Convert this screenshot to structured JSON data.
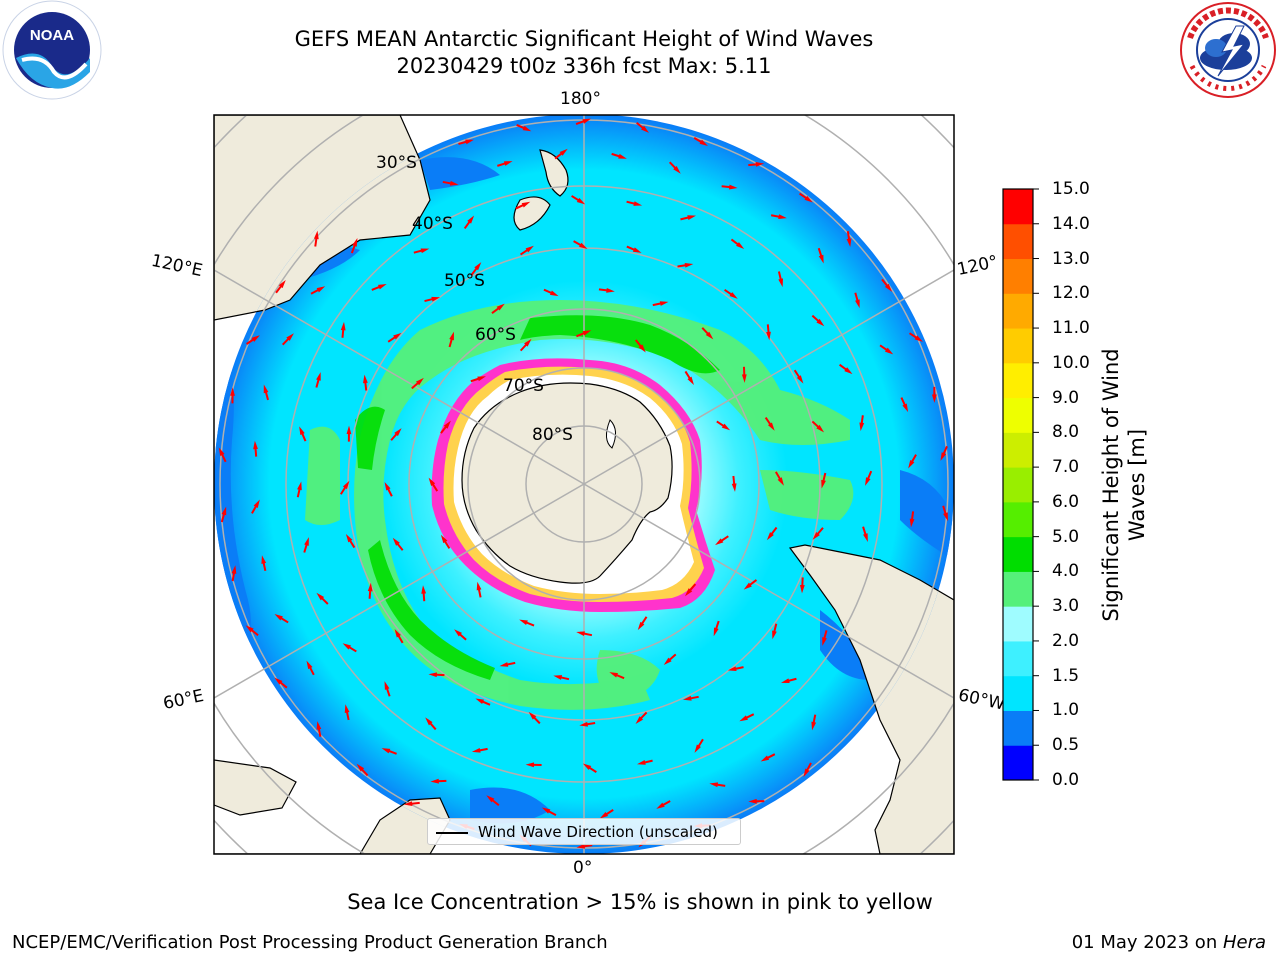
{
  "header": {
    "title_line1": "GEFS MEAN Antarctic Significant Height of Wind Waves",
    "title_line2": "20230429 t00z 336h fcst   Max: 5.11"
  },
  "logos": {
    "left": {
      "icon": "noaa-logo",
      "text": "NOAA"
    },
    "right": {
      "icon": "national-weather-service-logo",
      "text": "NATIONAL WEATHER SERVICE"
    }
  },
  "map": {
    "projection": "south-polar-stereographic",
    "longitude_labels": {
      "top": "180°",
      "left_upper": "120°E",
      "right_upper": "120°",
      "left_lower": "60°E",
      "right_lower": "60°W",
      "bottom": "0°"
    },
    "latitude_labels": [
      "30°S",
      "40°S",
      "50°S",
      "60°S",
      "70°S",
      "80°S"
    ],
    "legend_label": "Wind Wave Direction (unscaled)",
    "arrow_color": "#ff0000",
    "land_color": "#efebdc",
    "ice_colors": [
      "#ff33cc",
      "#ffd24d",
      "#ffffff"
    ]
  },
  "colorbar": {
    "label": "Significant Height of Wind Waves [m]",
    "ticks": [
      "0.0",
      "0.5",
      "1.0",
      "1.5",
      "2.0",
      "3.0",
      "4.0",
      "5.0",
      "6.0",
      "7.0",
      "8.0",
      "9.0",
      "10.0",
      "11.0",
      "12.0",
      "13.0",
      "14.0",
      "15.0"
    ],
    "colors": [
      "#0000ff",
      "#0a7df7",
      "#00e5ff",
      "#3ef0ff",
      "#9ffcff",
      "#55f07a",
      "#00dd00",
      "#55ee00",
      "#99ee00",
      "#ccee00",
      "#eeff00",
      "#ffee00",
      "#ffcc00",
      "#ffaa00",
      "#ff7f00",
      "#ff4f00",
      "#ff0000"
    ]
  },
  "footer": {
    "note": "Sea Ice Concentration > 15% is shown in pink to yellow",
    "left": "NCEP/EMC/Verification Post Processing Product Generation Branch",
    "right_date": "01 May 2023 on ",
    "right_host": "Hera"
  }
}
